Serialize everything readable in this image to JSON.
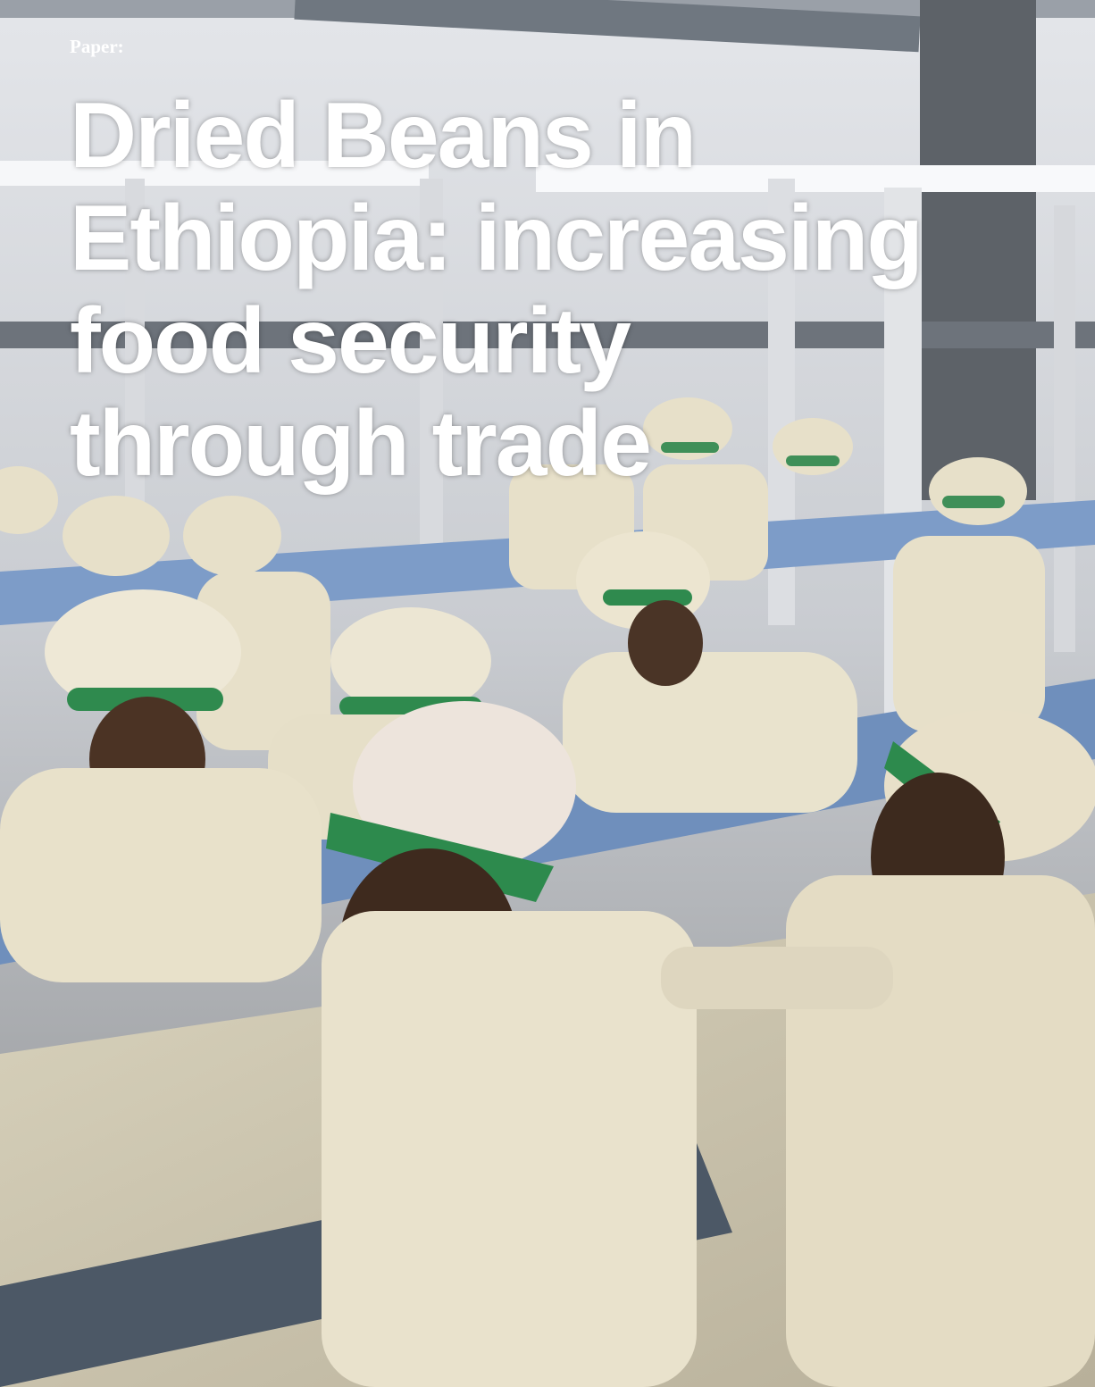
{
  "header": {
    "kicker": "Paper:",
    "title_lines": [
      "Dried Beans in",
      "Ethiopia: increasing",
      "food security",
      "through trade"
    ]
  }
}
